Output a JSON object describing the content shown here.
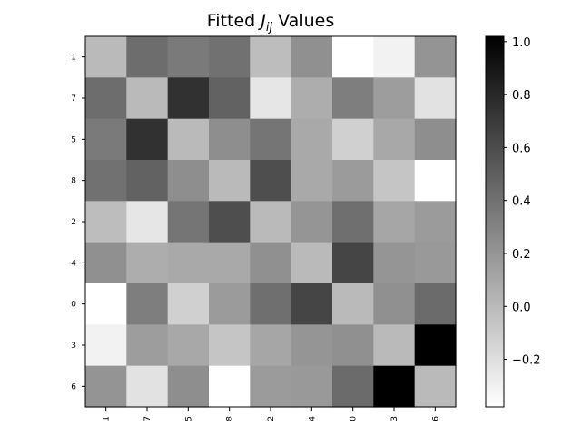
{
  "chart_data": {
    "type": "heatmap",
    "title_prefix": "Fitted ",
    "title_symbol": "J",
    "title_subscript": "ij",
    "title_suffix": " Values",
    "row_labels": [
      "1",
      "7",
      "5",
      "8",
      "2",
      "4",
      "0",
      "3",
      "6"
    ],
    "col_labels": [
      "1",
      "7",
      "5",
      "8",
      "2",
      "4",
      "0",
      "3",
      "6"
    ],
    "values": [
      [
        0.0,
        0.42,
        0.35,
        0.4,
        -0.02,
        0.23,
        -0.38,
        -0.31,
        0.21
      ],
      [
        0.42,
        0.0,
        0.75,
        0.48,
        -0.24,
        0.07,
        0.33,
        0.16,
        -0.22
      ],
      [
        0.35,
        0.75,
        0.0,
        0.24,
        0.38,
        0.09,
        -0.12,
        0.1,
        0.24
      ],
      [
        0.4,
        0.48,
        0.24,
        0.0,
        0.59,
        0.09,
        0.17,
        -0.06,
        -0.38
      ],
      [
        -0.02,
        -0.24,
        0.38,
        0.59,
        0.0,
        0.2,
        0.41,
        0.11,
        0.17
      ],
      [
        0.23,
        0.07,
        0.09,
        0.09,
        0.23,
        0.0,
        0.64,
        0.2,
        0.18
      ],
      [
        -0.38,
        0.33,
        -0.12,
        0.17,
        0.41,
        0.64,
        0.0,
        0.23,
        0.43
      ],
      [
        -0.31,
        0.16,
        0.1,
        -0.06,
        0.11,
        0.2,
        0.23,
        0.0,
        1.02
      ],
      [
        0.21,
        -0.22,
        0.24,
        -0.38,
        0.17,
        0.18,
        0.43,
        1.02,
        0.0
      ]
    ],
    "vmin": -0.38,
    "vmax": 1.02,
    "colormap": "gray_r",
    "colorbar_ticks": [
      1.0,
      0.8,
      0.6,
      0.4,
      0.2,
      0.0,
      -0.2
    ],
    "colorbar_tick_labels": [
      "1.0",
      "0.8",
      "0.6",
      "0.4",
      "0.2",
      "0.0",
      "−0.2"
    ],
    "colorbar_position": "right",
    "grid": false
  }
}
